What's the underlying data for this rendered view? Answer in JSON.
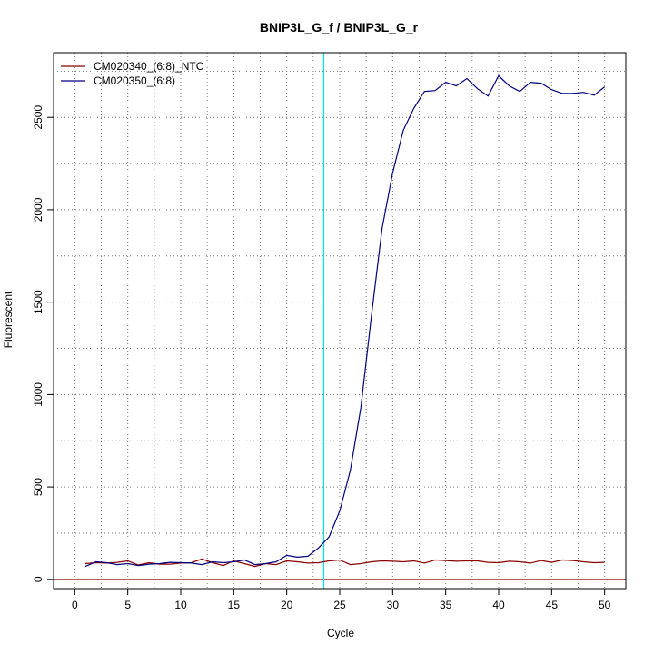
{
  "chart_data": {
    "type": "line",
    "title": "BNIP3L_G_f / BNIP3L_G_r",
    "xlabel": "Cycle",
    "ylabel": "Fluorescent",
    "xlim": [
      -2,
      52
    ],
    "ylim": [
      -50,
      2850
    ],
    "x_ticks": [
      0,
      5,
      10,
      15,
      20,
      25,
      30,
      35,
      40,
      45,
      50
    ],
    "y_ticks": [
      0,
      500,
      1000,
      1500,
      2000,
      2500
    ],
    "grid": true,
    "grid_x": [
      2.5,
      7.5,
      12.5,
      17.5,
      22.5,
      27.5,
      32.5,
      37.5,
      42.5,
      47.5
    ],
    "grid_y": [
      250,
      750,
      1250,
      1750,
      2250,
      2750
    ],
    "legend_position": "top-left",
    "threshold_cycle": 23.5,
    "baseline": 0,
    "colors": {
      "threshold": "#00e5e5",
      "baseline": "#8b0000",
      "grid": "#777777"
    },
    "x": [
      1,
      2,
      3,
      4,
      5,
      6,
      7,
      8,
      9,
      10,
      11,
      12,
      13,
      14,
      15,
      16,
      17,
      18,
      19,
      20,
      21,
      22,
      23,
      24,
      25,
      26,
      27,
      28,
      29,
      30,
      31,
      32,
      33,
      34,
      35,
      36,
      37,
      38,
      39,
      40,
      41,
      42,
      43,
      44,
      45,
      46,
      47,
      48,
      49,
      50
    ],
    "series": [
      {
        "name": "CM020340_(6:8)_NTC",
        "color": "#8b0000",
        "values": [
          85,
          90,
          88,
          92,
          100,
          78,
          90,
          82,
          82,
          88,
          90,
          110,
          90,
          75,
          100,
          85,
          70,
          85,
          80,
          100,
          95,
          88,
          90,
          100,
          105,
          80,
          85,
          95,
          100,
          98,
          95,
          100,
          88,
          105,
          102,
          98,
          100,
          100,
          92,
          90,
          98,
          95,
          88,
          102,
          92,
          105,
          102,
          95,
          90,
          92
        ]
      },
      {
        "name": "CM020350_(6:8)",
        "color": "#00007f",
        "values": [
          70,
          95,
          90,
          80,
          85,
          75,
          82,
          85,
          92,
          90,
          88,
          80,
          95,
          90,
          95,
          105,
          80,
          85,
          95,
          130,
          120,
          125,
          170,
          230,
          370,
          590,
          930,
          1430,
          1900,
          2200,
          2430,
          2550,
          2640,
          2645,
          2690,
          2670,
          2710,
          2655,
          2615,
          2725,
          2670,
          2640,
          2690,
          2685,
          2650,
          2630,
          2630,
          2635,
          2620,
          2665
        ]
      }
    ]
  }
}
